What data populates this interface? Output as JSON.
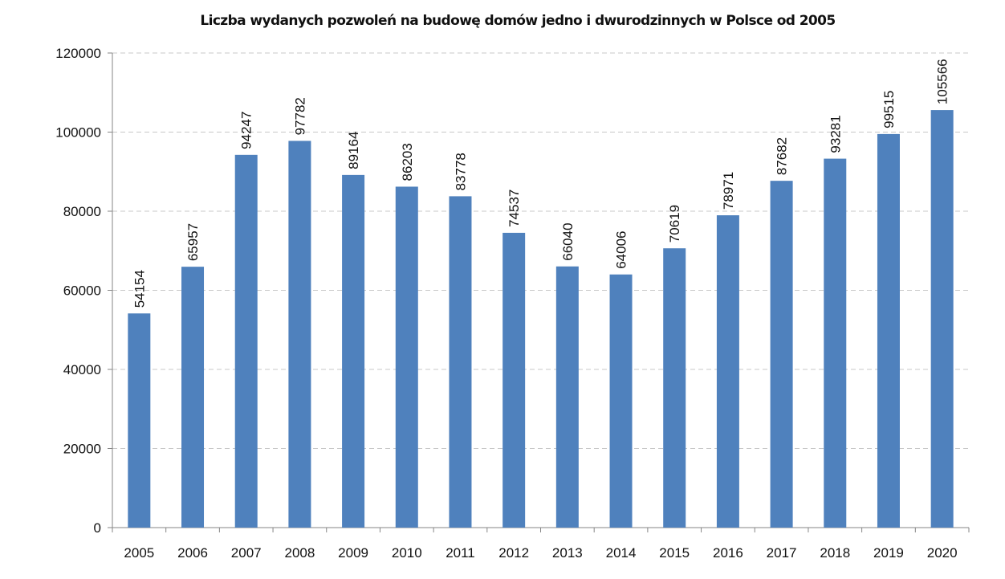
{
  "chart_data": {
    "type": "bar",
    "title": "Liczba wydanych pozwoleń na budowę domów jedno i dwurodzinnych w Polsce od 2005",
    "xlabel": "",
    "ylabel": "",
    "categories": [
      "2005",
      "2006",
      "2007",
      "2008",
      "2009",
      "2010",
      "2011",
      "2012",
      "2013",
      "2014",
      "2015",
      "2016",
      "2017",
      "2018",
      "2019",
      "2020"
    ],
    "values": [
      54154,
      65957,
      94247,
      97782,
      89164,
      86203,
      83778,
      74537,
      66040,
      64006,
      70619,
      78971,
      87682,
      93281,
      99515,
      105566
    ],
    "data_labels": [
      "54154",
      "65957",
      "94247",
      "97782",
      "89164",
      "86203",
      "83778",
      "74537",
      "66040",
      "64006",
      "70619",
      "78971",
      "87682",
      "93281",
      "99515",
      "105566"
    ],
    "ylim": [
      0,
      120000
    ],
    "yticks": [
      0,
      20000,
      40000,
      60000,
      80000,
      100000,
      120000
    ],
    "ytick_labels": [
      "0",
      "20000",
      "40000",
      "60000",
      "80000",
      "100000",
      "120000"
    ],
    "grid": "horizontal dashed",
    "legend": "none",
    "bar_color": "#4f81bd",
    "grid_color": "#c8c8c8",
    "axis_color": "#868686"
  }
}
